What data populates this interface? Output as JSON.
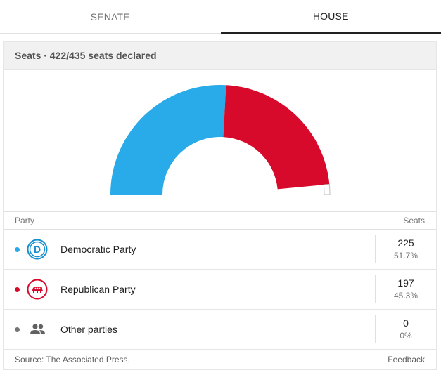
{
  "tabs": [
    {
      "label": "SENATE",
      "active": false
    },
    {
      "label": "HOUSE",
      "active": true
    }
  ],
  "card": {
    "header": "Seats · 422/435 seats declared"
  },
  "chart_data": {
    "type": "pie",
    "style": "semicircle",
    "total_seats": 435,
    "declared": 422,
    "series": [
      {
        "name": "Democratic Party",
        "value": 225,
        "color": "#29aae9"
      },
      {
        "name": "Republican Party",
        "value": 197,
        "color": "#d70a2b"
      },
      {
        "name": "Other parties",
        "value": 0,
        "color": "#757575"
      }
    ],
    "undeclared_color": "#ffffff"
  },
  "table": {
    "col_party": "Party",
    "col_seats": "Seats",
    "rows": [
      {
        "party": "Democratic Party",
        "seats": "225",
        "pct": "51.7%",
        "color": "#29aae9",
        "icon": "democratic-donkey-icon"
      },
      {
        "party": "Republican Party",
        "seats": "197",
        "pct": "45.3%",
        "color": "#d70a2b",
        "icon": "republican-elephant-icon"
      },
      {
        "party": "Other parties",
        "seats": "0",
        "pct": "0%",
        "color": "#757575",
        "icon": "people-icon"
      }
    ]
  },
  "footer": {
    "source": "Source: The Associated Press.",
    "feedback": "Feedback"
  }
}
